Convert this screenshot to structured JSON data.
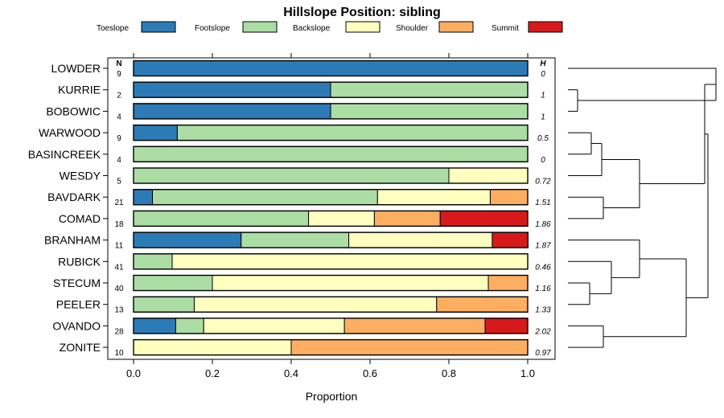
{
  "chart_data": {
    "type": "bar",
    "subtype": "stacked-horizontal-proportion",
    "title": "Hillslope Position: sibling",
    "xlabel": "Proportion",
    "ylabel": "",
    "xlim": [
      0,
      1
    ],
    "xticks": [
      "0.0",
      "0.2",
      "0.4",
      "0.6",
      "0.8",
      "1.0"
    ],
    "n_header": "N",
    "h_header": "H",
    "legend_position": "top",
    "series": [
      {
        "name": "Toeslope",
        "color": "#2c7bb6"
      },
      {
        "name": "Footslope",
        "color": "#abdda4"
      },
      {
        "name": "Backslope",
        "color": "#ffffbf"
      },
      {
        "name": "Shoulder",
        "color": "#fdae61"
      },
      {
        "name": "Summit",
        "color": "#d7191c"
      }
    ],
    "rows": [
      {
        "name": "LOWDER",
        "n": "9",
        "h": "0",
        "values": [
          1.0,
          0,
          0,
          0,
          0
        ]
      },
      {
        "name": "KURRIE",
        "n": "2",
        "h": "1",
        "values": [
          0.5,
          0.5,
          0,
          0,
          0
        ]
      },
      {
        "name": "BOBOWIC",
        "n": "4",
        "h": "1",
        "values": [
          0.5,
          0.5,
          0,
          0,
          0
        ]
      },
      {
        "name": "WARWOOD",
        "n": "9",
        "h": "0.5",
        "values": [
          0.111,
          0.889,
          0,
          0,
          0
        ]
      },
      {
        "name": "BASINCREEK",
        "n": "4",
        "h": "0",
        "values": [
          0,
          1.0,
          0,
          0,
          0
        ]
      },
      {
        "name": "WESDY",
        "n": "5",
        "h": "0.72",
        "values": [
          0,
          0.8,
          0.2,
          0,
          0
        ]
      },
      {
        "name": "BAVDARK",
        "n": "21",
        "h": "1.51",
        "values": [
          0.048,
          0.571,
          0.286,
          0.095,
          0
        ]
      },
      {
        "name": "COMAD",
        "n": "18",
        "h": "1.86",
        "values": [
          0,
          0.444,
          0.167,
          0.167,
          0.222
        ]
      },
      {
        "name": "BRANHAM",
        "n": "11",
        "h": "1.87",
        "values": [
          0.273,
          0.273,
          0.364,
          0,
          0.091
        ]
      },
      {
        "name": "RUBICK",
        "n": "41",
        "h": "0.46",
        "values": [
          0,
          0.098,
          0.902,
          0,
          0
        ]
      },
      {
        "name": "STECUM",
        "n": "40",
        "h": "1.16",
        "values": [
          0,
          0.2,
          0.7,
          0.1,
          0
        ]
      },
      {
        "name": "PEELER",
        "n": "13",
        "h": "1.33",
        "values": [
          0,
          0.154,
          0.615,
          0.231,
          0
        ]
      },
      {
        "name": "OVANDO",
        "n": "28",
        "h": "2.02",
        "values": [
          0.107,
          0.071,
          0.357,
          0.357,
          0.107
        ]
      },
      {
        "name": "ZONITE",
        "n": "10",
        "h": "0.97",
        "values": [
          0,
          0,
          0.4,
          0.6,
          0
        ]
      }
    ],
    "dendrogram_note": "hierarchical clustering tree on right side, leaves aligned with rows"
  }
}
